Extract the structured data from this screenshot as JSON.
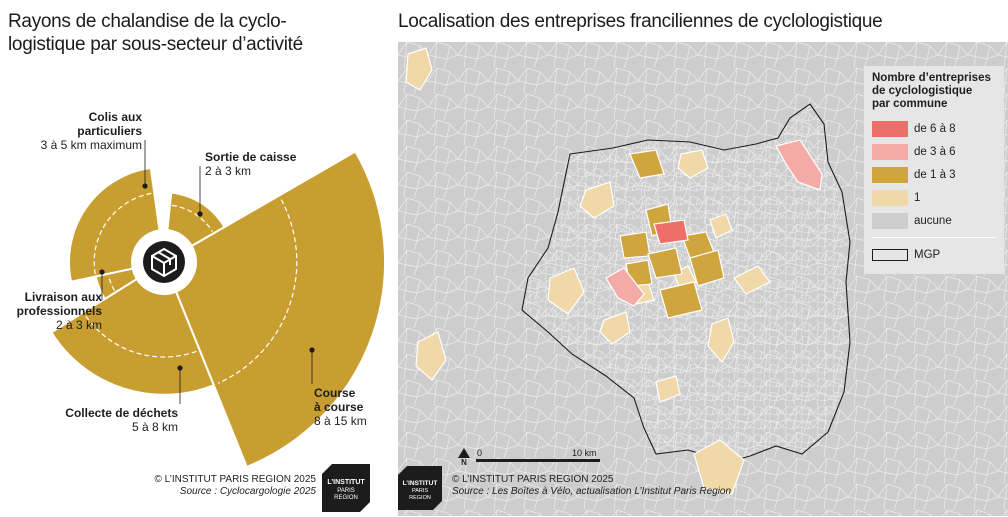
{
  "left": {
    "title": "Rayons de chalandise de la cyclo-\nlogistique par sous-secteur d’activité",
    "segments": [
      {
        "name": "Colis aux particuliers",
        "label": "Colis aux\nparticuliers",
        "range": "3 à 5 km maximum",
        "min_km": 3,
        "max_km": 5
      },
      {
        "name": "Sortie de caisse",
        "label": "Sortie de caisse",
        "range": "2 à 3 km",
        "min_km": 2,
        "max_km": 3
      },
      {
        "name": "Course à course",
        "label": "Course\nà course",
        "range": "8 à 15 km",
        "min_km": 8,
        "max_km": 15
      },
      {
        "name": "Collecte de déchets",
        "label": "Collecte de déchets",
        "range": "5 à 8 km",
        "min_km": 5,
        "max_km": 8
      },
      {
        "name": "Livraison aux professionnels",
        "label": "Livraison aux\nprofessionnels",
        "range": "2 à 3 km",
        "min_km": 2,
        "max_km": 3
      }
    ],
    "credit": "© L’INSTITUT PARIS REGION 2025",
    "source": "Source : Cyclocargologie 2025"
  },
  "right": {
    "title": "Localisation des entreprises franciliennes de cyclologistique",
    "legend": {
      "title": "Nombre d’entreprises\nde cyclologistique\npar commune",
      "classes": [
        {
          "label": "de 6 à 8",
          "color": "#ee6e6a"
        },
        {
          "label": "de 3 à 6",
          "color": "#f4aaa6"
        },
        {
          "label": "de 1 à 3",
          "color": "#d1a53e"
        },
        {
          "label": "1",
          "color": "#f0d8a8"
        },
        {
          "label": "aucune",
          "color": "#cdcdcd"
        }
      ],
      "boundary_label": "MGP"
    },
    "scale": {
      "zero": "0",
      "max": "10 km"
    },
    "north": "N",
    "credit": "© L’INSTITUT PARIS REGION 2025",
    "source": "Source : Les Boîtes à Vélo, actualisation L’Institut Paris Region"
  },
  "logo_text": [
    "L’INSTITUT",
    "PARIS",
    "REGION"
  ],
  "colors": {
    "gold": "#c99e30",
    "dark": "#1c1c1c",
    "map_bg": "#cdcdcd",
    "border": "#ffffff"
  }
}
